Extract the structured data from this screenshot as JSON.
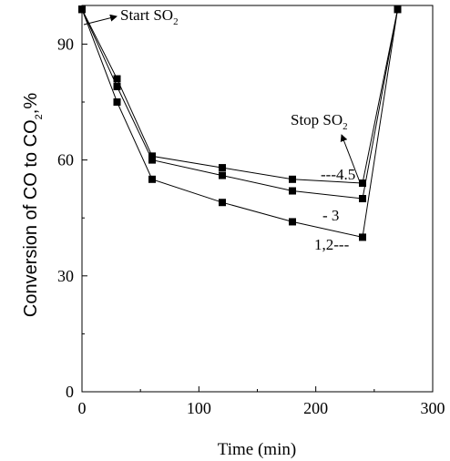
{
  "chart_data": {
    "type": "line",
    "xlabel": "Time (min)",
    "ylabel": {
      "main": "Conversion of CO to CO",
      "sub": "2",
      "suffix": ",%"
    },
    "xlim": [
      0,
      300
    ],
    "ylim": [
      0,
      100
    ],
    "x_ticks": [
      "0",
      "100",
      "200",
      "300"
    ],
    "y_ticks": [
      "0",
      "30",
      "60",
      "90"
    ],
    "grid": false,
    "series": [
      {
        "x": [
          0,
          30,
          60,
          120,
          180,
          240,
          270
        ],
        "y": [
          99,
          81,
          61,
          58,
          55,
          54,
          99
        ]
      },
      {
        "x": [
          0,
          30,
          60,
          120,
          180,
          240,
          270
        ],
        "y": [
          99,
          79,
          60,
          56,
          52,
          50,
          99
        ]
      },
      {
        "x": [
          0,
          30,
          60,
          120,
          180,
          240,
          270
        ],
        "y": [
          99,
          75,
          55,
          49,
          44,
          40,
          99
        ]
      }
    ],
    "annotations": {
      "start": {
        "main": "Start SO",
        "sub": "2"
      },
      "stop": {
        "main": "Stop SO",
        "sub": "2"
      },
      "label_45": "---4.5",
      "label_3": "- 3",
      "label_12": "1,2---"
    }
  },
  "colors": {
    "line": "#000000",
    "marker": "#000000"
  }
}
